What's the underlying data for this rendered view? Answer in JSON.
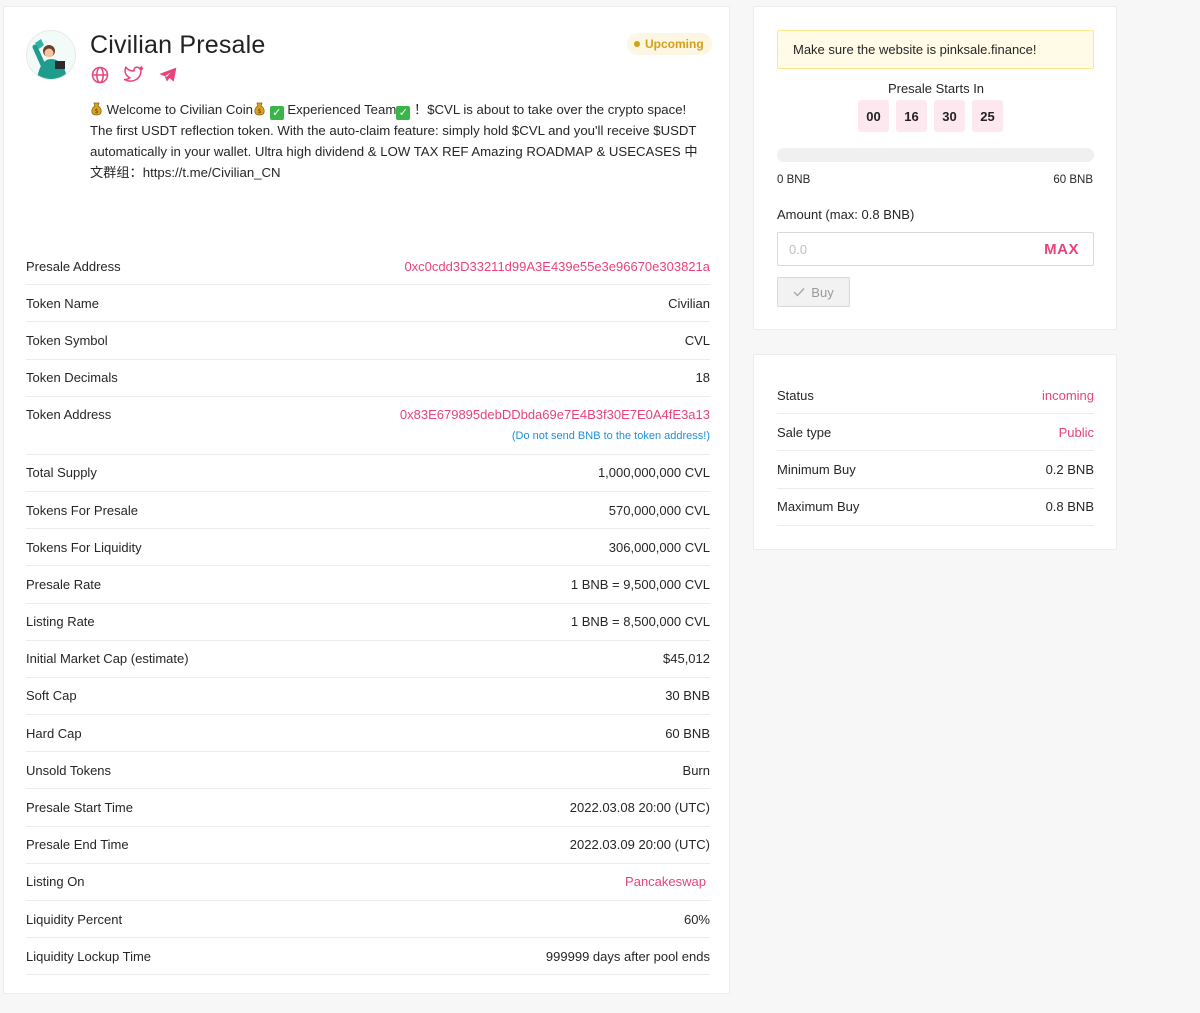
{
  "header": {
    "title": "Civilian Presale",
    "badge": "Upcoming",
    "social": [
      "globe-icon",
      "twitter-icon",
      "telegram-icon"
    ]
  },
  "description": {
    "part1": " Welcome to Civilian Coin",
    "part2": " Experienced Team",
    "part3": "！$CVL is about to take over the crypto space! The first USDT reflection token. With the auto-claim feature: simply hold $CVL and you'll receive $USDT automatically in your wallet. Ultra high dividend & LOW TAX REF Amazing ROADMAP & USECASES 中文群组：https://t.me/Civilian_CN"
  },
  "details": {
    "presale_address": {
      "label": "Presale Address",
      "value": "0xc0cdd3D33211d99A3E439e55e3e96670e303821a"
    },
    "token_name": {
      "label": "Token Name",
      "value": "Civilian"
    },
    "token_symbol": {
      "label": "Token Symbol",
      "value": "CVL"
    },
    "token_decimals": {
      "label": "Token Decimals",
      "value": "18"
    },
    "token_address": {
      "label": "Token Address",
      "value": "0x83E679895debDDbda69e7E4B3f30E7E0A4fE3a13",
      "note": "(Do not send BNB to the token address!)"
    },
    "total_supply": {
      "label": "Total Supply",
      "value": "1,000,000,000 CVL"
    },
    "tokens_for_presale": {
      "label": "Tokens For Presale",
      "value": "570,000,000 CVL"
    },
    "tokens_for_liquidity": {
      "label": "Tokens For Liquidity",
      "value": "306,000,000 CVL"
    },
    "presale_rate": {
      "label": "Presale Rate",
      "value": "1 BNB = 9,500,000 CVL"
    },
    "listing_rate": {
      "label": "Listing Rate",
      "value": "1 BNB = 8,500,000 CVL"
    },
    "initial_market_cap": {
      "label": "Initial Market Cap (estimate)",
      "value": "$45,012"
    },
    "soft_cap": {
      "label": "Soft Cap",
      "value": "30 BNB"
    },
    "hard_cap": {
      "label": "Hard Cap",
      "value": "60 BNB"
    },
    "unsold_tokens": {
      "label": "Unsold Tokens",
      "value": "Burn"
    },
    "presale_start_time": {
      "label": "Presale Start Time",
      "value": "2022.03.08 20:00 (UTC)"
    },
    "presale_end_time": {
      "label": "Presale End Time",
      "value": "2022.03.09 20:00 (UTC)"
    },
    "listing_on": {
      "label": "Listing On",
      "value": "Pancakeswap"
    },
    "liquidity_percent": {
      "label": "Liquidity Percent",
      "value": "60%"
    },
    "liquidity_lockup_time": {
      "label": "Liquidity Lockup Time",
      "value": "999999 days after pool ends"
    }
  },
  "buy": {
    "warning": "Make sure the website is pinksale.finance!",
    "starts_label": "Presale Starts In",
    "countdown": [
      "00",
      "16",
      "30",
      "25"
    ],
    "progress_fraction": 0,
    "progress_min": "0 BNB",
    "progress_max": "60 BNB",
    "amount_label": "Amount (max: 0.8 BNB)",
    "amount_placeholder": "0.0",
    "max_label": "MAX",
    "buy_label": "Buy"
  },
  "status": {
    "status": {
      "label": "Status",
      "value": "incoming"
    },
    "sale_type": {
      "label": "Sale type",
      "value": "Public"
    },
    "min_buy": {
      "label": "Minimum Buy",
      "value": "0.2 BNB"
    },
    "max_buy": {
      "label": "Maximum Buy",
      "value": "0.8 BNB"
    }
  },
  "colors": {
    "accent": "#e9437a",
    "badge_text": "#d4a017",
    "badge_bg": "#fdf6e3",
    "note_blue": "#1f8fd8"
  }
}
